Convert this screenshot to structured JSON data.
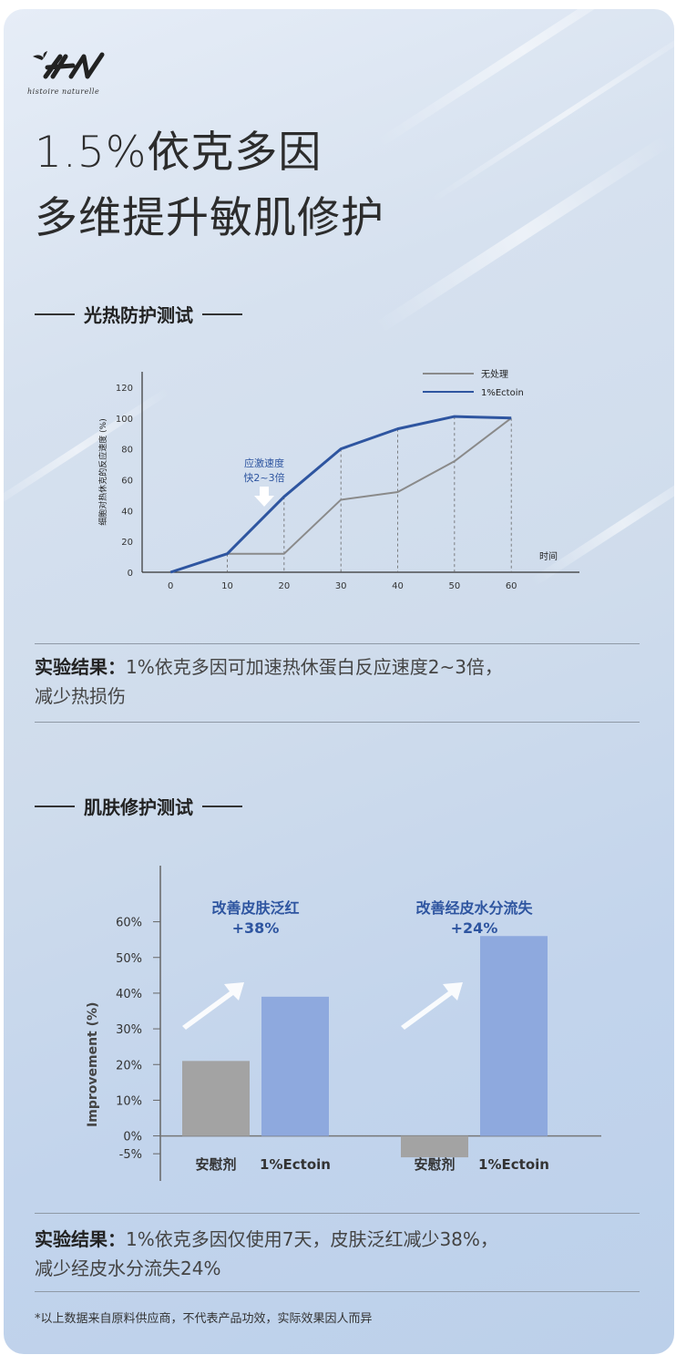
{
  "brand": {
    "logo_text": "HN",
    "tagline": "histoire naturelle"
  },
  "headline": {
    "line1": "1.5%依克多因",
    "line2": "多维提升敏肌修护"
  },
  "section1": {
    "title": "光热防护测试",
    "result_label": "实验结果：",
    "result_text": "1%依克多因可加速热休蛋白反应速度2~3倍，",
    "result_text2": "减少热损伤"
  },
  "section2": {
    "title": "肌肤修护测试",
    "result_label": "实验结果：",
    "result_text": "1%依克多因仅使用7天，皮肤泛红减少38%，",
    "result_text2": "减少经皮水分流失24%"
  },
  "footnote": "*以上数据来自原料供应商，不代表产品功效，实际效果因人而异",
  "chart_data": [
    {
      "type": "line",
      "ylabel": "细胞对热休克的反应速度 (%)",
      "xlabel": "时间",
      "x": [
        0,
        10,
        20,
        30,
        40,
        50,
        60
      ],
      "ylim": [
        0,
        130
      ],
      "xlim": [
        -5,
        72
      ],
      "y_ticks": [
        0,
        20,
        40,
        60,
        80,
        100,
        120
      ],
      "series": [
        {
          "name": "无处理",
          "color": "#8a8a8a",
          "values": [
            0,
            12,
            12,
            47,
            52,
            72,
            100
          ]
        },
        {
          "name": "1%Ectoin",
          "color": "#2e55a0",
          "values": [
            0,
            12,
            49,
            80,
            93,
            101,
            100
          ]
        }
      ],
      "annotation": {
        "line1": "应激速度",
        "line2": "快2~3倍"
      },
      "legend": "top-right"
    },
    {
      "type": "bar",
      "ylabel": "Improvement (%)",
      "ylim": [
        -7,
        65
      ],
      "y_ticks": [
        "60%",
        "50%",
        "40%",
        "30%",
        "20%",
        "10%",
        "0%",
        "-5%"
      ],
      "y_tick_values": [
        60,
        50,
        40,
        30,
        20,
        10,
        0,
        -5
      ],
      "groups": [
        {
          "title": "改善皮肤泛红",
          "delta": "+38%",
          "bars": [
            {
              "label": "安慰剂",
              "value": 21,
              "color": "#a3a3a3"
            },
            {
              "label": "1%Ectoin",
              "value": 39,
              "color": "#8ea9de"
            }
          ]
        },
        {
          "title": "改善经皮水分流失",
          "delta": "+24%",
          "bars": [
            {
              "label": "安慰剂",
              "value": -6,
              "color": "#a3a3a3"
            },
            {
              "label": "1%Ectoin",
              "value": 56,
              "color": "#8ea9de"
            }
          ]
        }
      ]
    }
  ]
}
